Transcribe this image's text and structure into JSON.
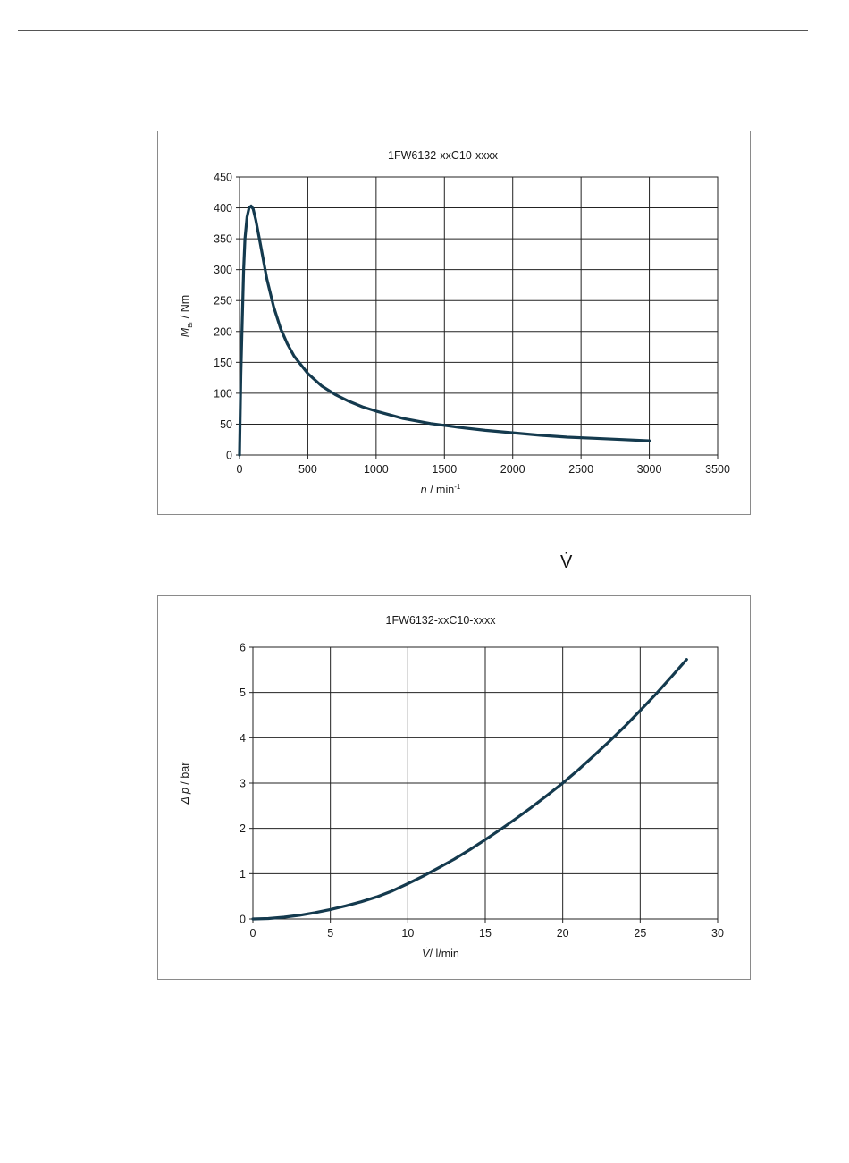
{
  "page": {
    "symbol_between_charts": "V̇"
  },
  "chart_data": [
    {
      "type": "line",
      "title": "1FW6132-xxC10-xxxx",
      "xlabel": {
        "symbol": "n",
        "unit": " / min",
        "exponent": "-1"
      },
      "ylabel": {
        "symbol": "M",
        "subscript": "Br",
        "unit": " / Nm"
      },
      "xlim": [
        0,
        3500
      ],
      "ylim": [
        0,
        450
      ],
      "xticks": [
        "0",
        "500",
        "1000",
        "1500",
        "2000",
        "2500",
        "3000",
        "3500"
      ],
      "yticks": [
        "0",
        "50",
        "100",
        "150",
        "200",
        "250",
        "300",
        "350",
        "400",
        "450"
      ],
      "grid": true,
      "line_color": "#143a4e",
      "series": [
        {
          "x": [
            0,
            10,
            20,
            30,
            40,
            55,
            70,
            85,
            100,
            120,
            150,
            200,
            250,
            300,
            350,
            400,
            500,
            600,
            700,
            800,
            900,
            1000,
            1200,
            1400,
            1600,
            1800,
            2000,
            2200,
            2400,
            2600,
            2800,
            3000
          ],
          "y": [
            0,
            130,
            220,
            300,
            350,
            385,
            400,
            403,
            398,
            380,
            345,
            285,
            240,
            205,
            180,
            160,
            132,
            112,
            98,
            87,
            78,
            71,
            59,
            51,
            45,
            40,
            36,
            32,
            29,
            27,
            25,
            23
          ]
        }
      ]
    },
    {
      "type": "line",
      "title": "1FW6132-xxC10-xxxx",
      "xlabel": {
        "symbol": "V̇",
        "unit": "/ l/min"
      },
      "ylabel": {
        "symbol": "Δ p",
        "unit": " / bar"
      },
      "xlim": [
        0,
        30
      ],
      "ylim": [
        0,
        6
      ],
      "xticks": [
        "0",
        "5",
        "10",
        "15",
        "20",
        "25",
        "30"
      ],
      "yticks": [
        "0",
        "1",
        "2",
        "3",
        "4",
        "5",
        "6"
      ],
      "grid": true,
      "line_color": "#143a4e",
      "series": [
        {
          "x": [
            0,
            1,
            2,
            3,
            4,
            5,
            6,
            7,
            8,
            9,
            10,
            11,
            12,
            13,
            14,
            15,
            16,
            17,
            18,
            19,
            20,
            21,
            22,
            23,
            24,
            25,
            26,
            27,
            28
          ],
          "y": [
            0,
            0.01,
            0.04,
            0.08,
            0.14,
            0.21,
            0.29,
            0.38,
            0.49,
            0.62,
            0.78,
            0.95,
            1.13,
            1.32,
            1.53,
            1.75,
            1.98,
            2.22,
            2.47,
            2.73,
            3.0,
            3.29,
            3.6,
            3.92,
            4.25,
            4.6,
            4.96,
            5.34,
            5.73
          ]
        }
      ]
    }
  ]
}
